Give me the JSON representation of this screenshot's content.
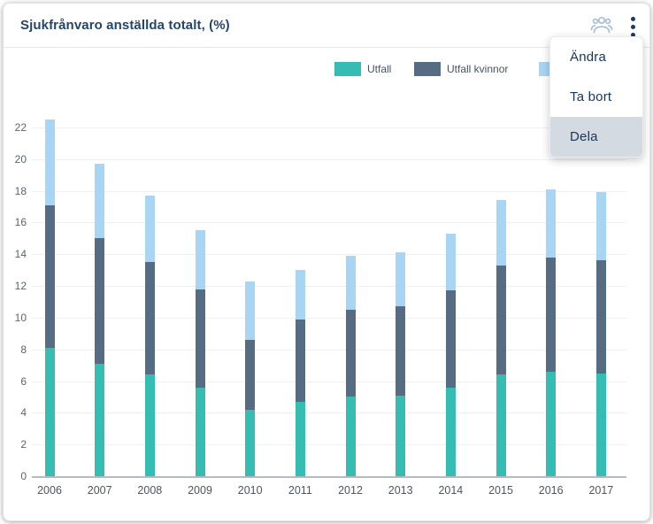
{
  "header": {
    "title": "Sjukfrånvaro anställda totalt, (%)",
    "icons": [
      {
        "name": "group-icon",
        "color": "#a7bfd6"
      },
      {
        "name": "kebab-menu-icon",
        "color": "#1d3a5f"
      }
    ]
  },
  "menu": {
    "items": [
      {
        "label": "Ändra",
        "highlighted": false
      },
      {
        "label": "Ta bort",
        "highlighted": false
      },
      {
        "label": "Dela",
        "highlighted": true
      }
    ]
  },
  "legend": {
    "items": [
      {
        "label": "Utfall",
        "color": "#35bcb3",
        "occluded": false
      },
      {
        "label": "Utfall kvinnor",
        "color": "#566c83",
        "occluded": false
      },
      {
        "label": "",
        "color": "#a9d5f5",
        "occluded": true
      }
    ]
  },
  "chart_data": {
    "type": "bar",
    "stacked": true,
    "title": "Sjukfrånvaro anställda totalt, (%)",
    "categories": [
      "2006",
      "2007",
      "2008",
      "2009",
      "2010",
      "2011",
      "2012",
      "2013",
      "2014",
      "2015",
      "2016",
      "2017"
    ],
    "series": [
      {
        "name": "Utfall",
        "color": "#35bcb3",
        "values": [
          8.1,
          7.1,
          6.4,
          5.6,
          4.2,
          4.7,
          5.0,
          5.1,
          5.6,
          6.4,
          6.6,
          6.5
        ]
      },
      {
        "name": "Utfall kvinnor",
        "color": "#566c83",
        "values": [
          9.0,
          7.9,
          7.1,
          6.2,
          4.4,
          5.2,
          5.5,
          5.6,
          6.1,
          6.9,
          7.2,
          7.1
        ]
      },
      {
        "name": "",
        "color": "#a9d5f5",
        "values": [
          5.4,
          4.7,
          4.2,
          3.7,
          3.7,
          3.1,
          3.4,
          3.4,
          3.6,
          4.1,
          4.3,
          4.3
        ]
      }
    ],
    "stack_totals": [
      22.5,
      19.7,
      17.7,
      15.5,
      12.3,
      13.0,
      13.9,
      14.1,
      15.3,
      17.4,
      18.1,
      17.9
    ],
    "xlabel": "",
    "ylabel": "",
    "yticks": [
      0,
      2,
      4,
      6,
      8,
      10,
      12,
      14,
      16,
      18,
      20,
      22
    ],
    "ylim": [
      0,
      24
    ],
    "grid": true,
    "legend_position": "top-right"
  }
}
